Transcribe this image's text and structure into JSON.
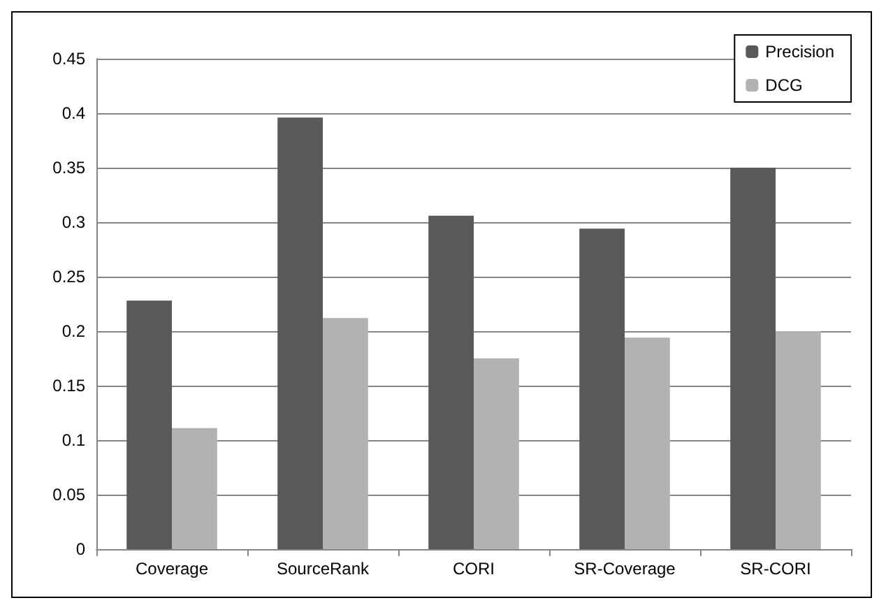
{
  "chart_data": {
    "type": "bar",
    "categories": [
      "Coverage",
      "SourceRank",
      "CORI",
      "SR-Coverage",
      "SR-CORI"
    ],
    "series": [
      {
        "name": "Precision",
        "color": "#595959",
        "values": [
          0.228,
          0.396,
          0.306,
          0.294,
          0.35
        ]
      },
      {
        "name": "DCG",
        "color": "#b2b2b2",
        "values": [
          0.111,
          0.212,
          0.175,
          0.194,
          0.2
        ]
      }
    ],
    "ylim": [
      0,
      0.45
    ],
    "yticks": [
      0,
      0.05,
      0.1,
      0.15,
      0.2,
      0.25,
      0.3,
      0.35,
      0.4,
      0.45
    ],
    "grid": "y",
    "legend": "top right"
  }
}
